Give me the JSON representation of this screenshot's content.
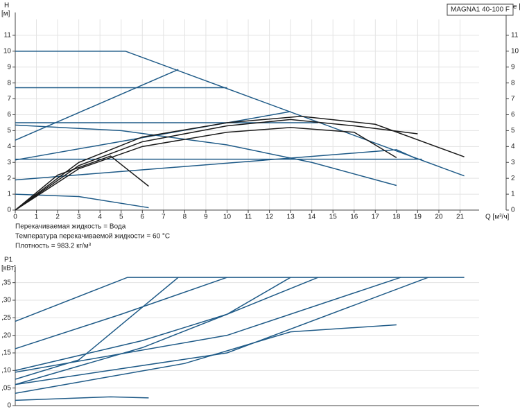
{
  "chart_data": [
    {
      "type": "line",
      "title": "MAGNA1 40-100 F",
      "ylabel": "H",
      "yunit": "[м]",
      "y2label": "e [%]",
      "xlabel": "Q [м³/ч]",
      "annotations": [
        "Перекачиваемая жидкость = Вода",
        "Температура перекачиваемой жидкости = 60 °C",
        "Плотность = 983.2 кг/м³"
      ],
      "xlim": [
        0,
        21.9
      ],
      "xticks": [
        0,
        1,
        2,
        3,
        4,
        5,
        6,
        7,
        8,
        9,
        10,
        11,
        12,
        13,
        14,
        15,
        16,
        17,
        18,
        19,
        20,
        21
      ],
      "ylim": [
        0,
        12
      ],
      "yticks": [
        0,
        1,
        2,
        3,
        4,
        5,
        6,
        7,
        8,
        9,
        10,
        11
      ],
      "y2lim": [
        0,
        12
      ],
      "y2ticks": [
        0,
        1,
        2,
        3,
        4,
        5,
        6,
        7,
        8,
        9,
        10,
        11
      ],
      "grid": true,
      "series": [
        {
          "color": "#1e5a87",
          "x": [
            0,
            5.2,
            21.2
          ],
          "values": [
            10,
            10,
            2.15
          ]
        },
        {
          "color": "#1e5a87",
          "x": [
            0,
            10
          ],
          "values": [
            7.7,
            7.7
          ]
        },
        {
          "color": "#1e5a87",
          "x": [
            0,
            7.7
          ],
          "values": [
            4.4,
            8.85
          ]
        },
        {
          "color": "#1e5a87",
          "x": [
            0,
            14.3
          ],
          "values": [
            5.5,
            5.5
          ]
        },
        {
          "color": "#1e5a87",
          "x": [
            0,
            5,
            10,
            14,
            18
          ],
          "values": [
            5.35,
            5.0,
            4.1,
            3.0,
            1.55
          ]
        },
        {
          "color": "#1e5a87",
          "x": [
            0,
            13
          ],
          "values": [
            3.15,
            6.2
          ]
        },
        {
          "color": "#1e5a87",
          "x": [
            0,
            19.2
          ],
          "values": [
            3.2,
            3.2
          ]
        },
        {
          "color": "#1e5a87",
          "x": [
            0,
            18,
            19
          ],
          "values": [
            1.9,
            3.8,
            3.2
          ]
        },
        {
          "color": "#1e5a87",
          "x": [
            0,
            3,
            6.3
          ],
          "values": [
            1.0,
            0.85,
            0.15
          ]
        },
        {
          "color": "#1a1a1a",
          "x": [
            0,
            3,
            6,
            10,
            13.5,
            17,
            21.2
          ],
          "values": [
            0,
            3.0,
            4.6,
            5.5,
            5.9,
            5.4,
            3.35
          ]
        },
        {
          "color": "#1a1a1a",
          "x": [
            0,
            3,
            6,
            10,
            13,
            16,
            19
          ],
          "values": [
            0,
            2.8,
            4.3,
            5.3,
            5.7,
            5.3,
            4.8
          ]
        },
        {
          "color": "#1a1a1a",
          "x": [
            0,
            3,
            6,
            10,
            13,
            16,
            18
          ],
          "values": [
            0,
            2.6,
            4.0,
            4.9,
            5.2,
            4.9,
            3.3
          ]
        },
        {
          "color": "#1a1a1a",
          "x": [
            0,
            2,
            4.5,
            6.3
          ],
          "values": [
            0,
            2.2,
            3.4,
            1.5
          ]
        }
      ]
    },
    {
      "type": "line",
      "ylabel": "P1",
      "yunit": "[кВт]",
      "xlim": [
        0,
        21.9
      ],
      "ylim": [
        0,
        0.375
      ],
      "yticks": [
        0,
        {
          "value": 0.05,
          "label": ",05"
        },
        {
          "value": 0.1,
          "label": ",10"
        },
        {
          "value": 0.15,
          "label": ",15"
        },
        {
          "value": 0.2,
          "label": ",20"
        },
        {
          "value": 0.25,
          "label": ",25"
        },
        {
          "value": 0.3,
          "label": ",30"
        },
        {
          "value": 0.35,
          "label": ",35"
        }
      ],
      "grid": true,
      "series": [
        {
          "color": "#1e5a87",
          "x": [
            0,
            5.3,
            21.2
          ],
          "values": [
            0.24,
            0.365,
            0.365
          ]
        },
        {
          "color": "#1e5a87",
          "x": [
            0,
            5,
            10
          ],
          "values": [
            0.162,
            0.26,
            0.365
          ]
        },
        {
          "color": "#1e5a87",
          "x": [
            0,
            3,
            7.7
          ],
          "values": [
            0.075,
            0.13,
            0.365
          ]
        },
        {
          "color": "#1e5a87",
          "x": [
            0,
            6,
            10,
            13
          ],
          "values": [
            0.1,
            0.185,
            0.26,
            0.365
          ]
        },
        {
          "color": "#1e5a87",
          "x": [
            0,
            6,
            10,
            14.3
          ],
          "values": [
            0.06,
            0.165,
            0.26,
            0.365
          ]
        },
        {
          "color": "#1e5a87",
          "x": [
            0,
            10,
            18.2
          ],
          "values": [
            0.095,
            0.2,
            0.365
          ]
        },
        {
          "color": "#1e5a87",
          "x": [
            0,
            10,
            19.5
          ],
          "values": [
            0.06,
            0.15,
            0.365
          ]
        },
        {
          "color": "#1e5a87",
          "x": [
            0,
            8,
            13,
            18
          ],
          "values": [
            0.035,
            0.12,
            0.21,
            0.23
          ]
        },
        {
          "color": "#1e5a87",
          "x": [
            0,
            4.5,
            6.3
          ],
          "values": [
            0.015,
            0.025,
            0.022
          ]
        }
      ]
    }
  ]
}
